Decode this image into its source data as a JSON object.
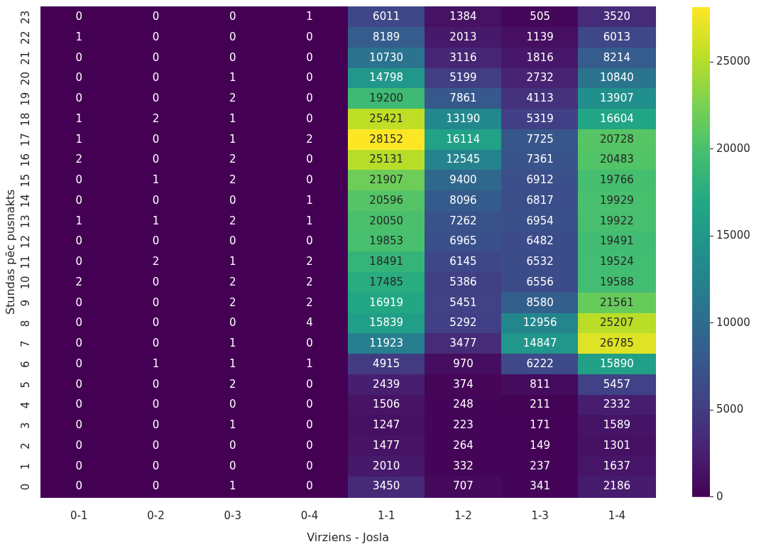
{
  "chart_data": {
    "type": "heatmap",
    "xlabel": "Virziens - Josla",
    "ylabel": "Stundas pēc pusnakts",
    "categories": [
      "0-1",
      "0-2",
      "0-3",
      "0-4",
      "1-1",
      "1-2",
      "1-3",
      "1-4"
    ],
    "y_categories": [
      "23",
      "22",
      "21",
      "20",
      "19",
      "18",
      "17",
      "16",
      "15",
      "14",
      "13",
      "12",
      "11",
      "10",
      "9",
      "8",
      "7",
      "6",
      "5",
      "4",
      "3",
      "2",
      "1",
      "0"
    ],
    "cells": [
      [
        0,
        0,
        0,
        1,
        6011,
        1384,
        505,
        3520
      ],
      [
        1,
        0,
        0,
        0,
        8189,
        2013,
        1139,
        6013
      ],
      [
        0,
        0,
        0,
        0,
        10730,
        3116,
        1816,
        8214
      ],
      [
        0,
        0,
        1,
        0,
        14798,
        5199,
        2732,
        10840
      ],
      [
        0,
        0,
        2,
        0,
        19200,
        7861,
        4113,
        13907
      ],
      [
        1,
        2,
        1,
        0,
        25421,
        13190,
        5319,
        16604
      ],
      [
        1,
        0,
        1,
        2,
        28152,
        16114,
        7725,
        20728
      ],
      [
        2,
        0,
        2,
        0,
        25131,
        12545,
        7361,
        20483
      ],
      [
        0,
        1,
        2,
        0,
        21907,
        9400,
        6912,
        19766
      ],
      [
        0,
        0,
        0,
        1,
        20596,
        8096,
        6817,
        19929
      ],
      [
        1,
        1,
        2,
        1,
        20050,
        7262,
        6954,
        19922
      ],
      [
        0,
        0,
        0,
        0,
        19853,
        6965,
        6482,
        19491
      ],
      [
        0,
        2,
        1,
        2,
        18491,
        6145,
        6532,
        19524
      ],
      [
        2,
        0,
        2,
        2,
        17485,
        5386,
        6556,
        19588
      ],
      [
        0,
        0,
        2,
        2,
        16919,
        5451,
        8580,
        21561
      ],
      [
        0,
        0,
        0,
        4,
        15839,
        5292,
        12956,
        25207
      ],
      [
        0,
        0,
        1,
        0,
        11923,
        3477,
        14847,
        26785
      ],
      [
        0,
        1,
        1,
        1,
        4915,
        970,
        6222,
        15890
      ],
      [
        0,
        0,
        2,
        0,
        2439,
        374,
        811,
        5457
      ],
      [
        0,
        0,
        0,
        0,
        1506,
        248,
        211,
        2332
      ],
      [
        0,
        0,
        1,
        0,
        1247,
        223,
        171,
        1589
      ],
      [
        0,
        0,
        0,
        0,
        1477,
        264,
        149,
        1301
      ],
      [
        0,
        0,
        0,
        0,
        2010,
        332,
        237,
        1637
      ],
      [
        0,
        0,
        1,
        0,
        3450,
        707,
        341,
        2186
      ]
    ],
    "data_labels": true,
    "clim": [
      0,
      28152
    ],
    "cticks": [
      0,
      5000,
      10000,
      15000,
      20000,
      25000
    ]
  }
}
